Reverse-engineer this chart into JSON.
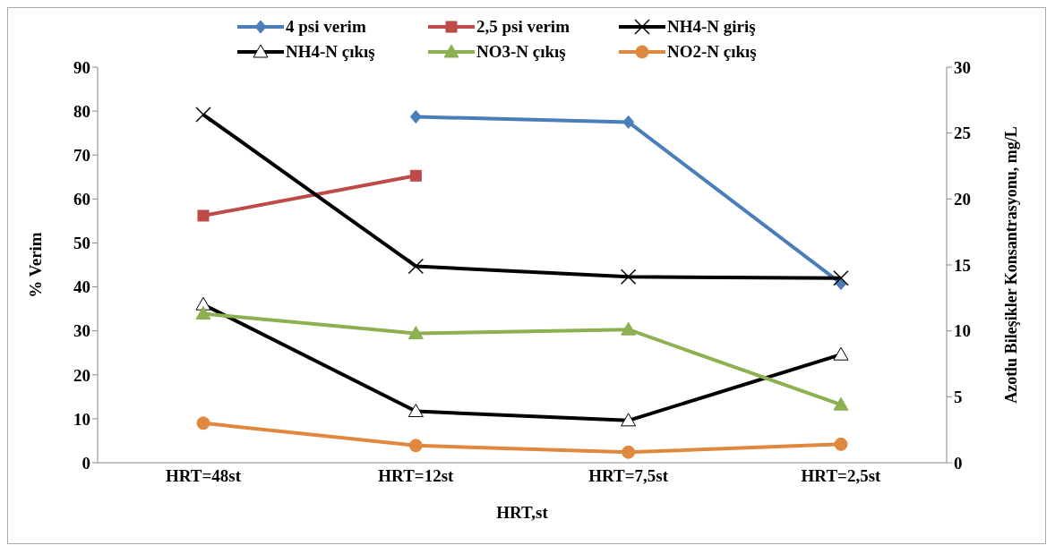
{
  "chart_data": {
    "type": "line",
    "xlabel": "HRT,st",
    "ylabel": "% Verim",
    "y2label": "Azotlu Bileşikler  Konsantrasyonu, mg/L",
    "categories": [
      "HRT=48st",
      "HRT=12st",
      "HRT=7,5st",
      "HRT=2,5st"
    ],
    "ylim": [
      0,
      90
    ],
    "yticks": [
      0,
      10,
      20,
      30,
      40,
      50,
      60,
      70,
      80,
      90
    ],
    "y2lim": [
      0,
      30
    ],
    "y2ticks": [
      0,
      5,
      10,
      15,
      20,
      25,
      30
    ],
    "legend": "top",
    "series": [
      {
        "name": "4 psi verim",
        "color": "#4a7ebb",
        "marker": "diamond",
        "values": [
          null,
          78.7,
          77.5,
          40.8
        ]
      },
      {
        "name": "2,5 psi verim",
        "color": "#be4b48",
        "marker": "square",
        "values": [
          56.2,
          65.3,
          null,
          null
        ]
      },
      {
        "name": "NH4-N giriş",
        "color": "#000000",
        "marker": "cross",
        "axis": "y2",
        "values": [
          26.4,
          14.9,
          14.1,
          14.0
        ]
      },
      {
        "name": "NH4-N çıkış",
        "color": "#000000",
        "marker": "triangle",
        "axis": "y2",
        "values": [
          12.0,
          3.9,
          3.2,
          8.2
        ]
      },
      {
        "name": "NO3-N çıkış",
        "color": "#8db050",
        "marker": "triangle",
        "axis": "y2",
        "values": [
          11.3,
          9.8,
          10.1,
          4.4
        ]
      },
      {
        "name": "NO2-N çıkış",
        "color": "#e0883d",
        "marker": "circle",
        "axis": "y2",
        "values": [
          3.0,
          1.3,
          0.8,
          1.4
        ]
      }
    ]
  }
}
